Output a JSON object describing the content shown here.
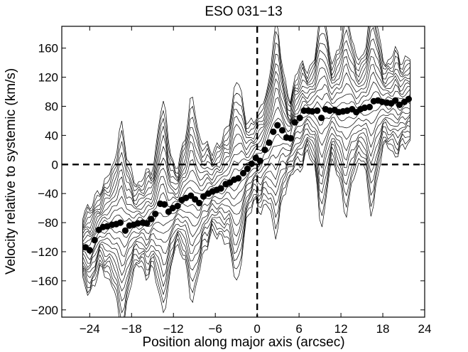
{
  "chart_data": {
    "type": "scatter",
    "title": "ESO 031−13",
    "xlabel": "Position along major axis (arcsec)",
    "ylabel": "Velocity relative to systemic (km/s)",
    "xlim": [
      -28,
      24
    ],
    "ylim": [
      -210,
      190
    ],
    "xticks": [
      -24,
      -18,
      -12,
      -6,
      0,
      6,
      12,
      18,
      24
    ],
    "yticks": [
      160,
      120,
      80,
      40,
      0,
      -40,
      -80,
      -120,
      -160,
      -200
    ],
    "xtick_labels": [
      "−24",
      "−18",
      "−12",
      "−6",
      "0",
      "6",
      "12",
      "18",
      "24"
    ],
    "ytick_labels": [
      "160",
      "120",
      "80",
      "40",
      "0",
      "−40",
      "−80",
      "−120",
      "−160",
      "−200"
    ],
    "reference_lines": {
      "x": 0,
      "y": 0,
      "style": "dashed"
    },
    "grid": false,
    "points": {
      "x": [
        -24.6,
        -24.0,
        -23.3,
        -22.7,
        -22.1,
        -21.5,
        -20.8,
        -20.2,
        -19.6,
        -18.9,
        -18.3,
        -17.7,
        -17.1,
        -16.4,
        -15.8,
        -15.2,
        -14.6,
        -13.9,
        -13.3,
        -12.7,
        -12.1,
        -11.4,
        -10.8,
        -10.2,
        -9.5,
        -8.9,
        -8.3,
        -7.7,
        -7.0,
        -6.4,
        -5.8,
        -5.2,
        -4.5,
        -3.9,
        -3.3,
        -2.7,
        -2.0,
        -1.4,
        -0.8,
        -0.2,
        0.4,
        1.1,
        1.7,
        2.3,
        2.9,
        3.6,
        4.2,
        4.8,
        5.4,
        6.1,
        6.7,
        7.3,
        7.9,
        8.6,
        9.2,
        9.8,
        10.4,
        11.1,
        11.7,
        12.3,
        12.9,
        13.6,
        14.2,
        14.8,
        15.4,
        16.1,
        16.7,
        17.3,
        17.9,
        18.6,
        19.2,
        19.8,
        20.4,
        21.1,
        21.7
      ],
      "y": [
        -114,
        -118,
        -104,
        -90,
        -86,
        -85,
        -83,
        -82,
        -80,
        -91,
        -84,
        -83,
        -81,
        -80,
        -81,
        -75,
        -68,
        -54,
        -55,
        -65,
        -60,
        -57,
        -49,
        -46,
        -43,
        -48,
        -53,
        -44,
        -40,
        -37,
        -35,
        -33,
        -27,
        -25,
        -21,
        -19,
        -12,
        -6,
        1,
        9,
        5,
        20,
        30,
        45,
        54,
        47,
        37,
        36,
        58,
        64,
        74,
        74,
        73,
        74,
        64,
        76,
        74,
        75,
        72,
        73,
        74,
        76,
        72,
        76,
        78,
        79,
        87,
        88,
        86,
        85,
        84,
        88,
        82,
        86,
        90
      ]
    },
    "contours": {
      "style": "thin black contour lines of position-velocity intensity, nested around the rotation curve"
    }
  }
}
